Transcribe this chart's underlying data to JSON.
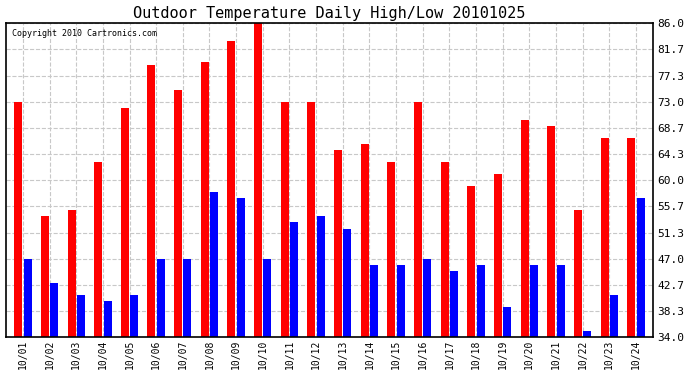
{
  "title": "Outdoor Temperature Daily High/Low 20101025",
  "copyright_text": "Copyright 2010 Cartronics.com",
  "dates": [
    "10/01",
    "10/02",
    "10/03",
    "10/04",
    "10/05",
    "10/06",
    "10/07",
    "10/08",
    "10/09",
    "10/10",
    "10/11",
    "10/12",
    "10/13",
    "10/14",
    "10/15",
    "10/16",
    "10/17",
    "10/18",
    "10/19",
    "10/20",
    "10/21",
    "10/22",
    "10/23",
    "10/24"
  ],
  "highs": [
    73.0,
    54.0,
    55.0,
    63.0,
    72.0,
    79.0,
    75.0,
    79.5,
    83.0,
    86.0,
    73.0,
    73.0,
    65.0,
    66.0,
    63.0,
    73.0,
    63.0,
    59.0,
    61.0,
    70.0,
    69.0,
    55.0,
    67.0,
    67.0
  ],
  "lows": [
    47.0,
    43.0,
    41.0,
    40.0,
    41.0,
    47.0,
    47.0,
    58.0,
    57.0,
    47.0,
    53.0,
    54.0,
    52.0,
    46.0,
    46.0,
    47.0,
    45.0,
    46.0,
    39.0,
    46.0,
    46.0,
    35.0,
    41.0,
    57.0
  ],
  "high_color": "#ff0000",
  "low_color": "#0000ff",
  "bg_color": "#ffffff",
  "plot_bg_color": "#ffffff",
  "grid_color": "#c8c8c8",
  "title_fontsize": 11,
  "ymin": 34.0,
  "ymax": 86.0,
  "yticks": [
    34.0,
    38.3,
    42.7,
    47.0,
    51.3,
    55.7,
    60.0,
    64.3,
    68.7,
    73.0,
    77.3,
    81.7,
    86.0
  ],
  "bar_width": 0.3,
  "bar_gap": 0.05
}
